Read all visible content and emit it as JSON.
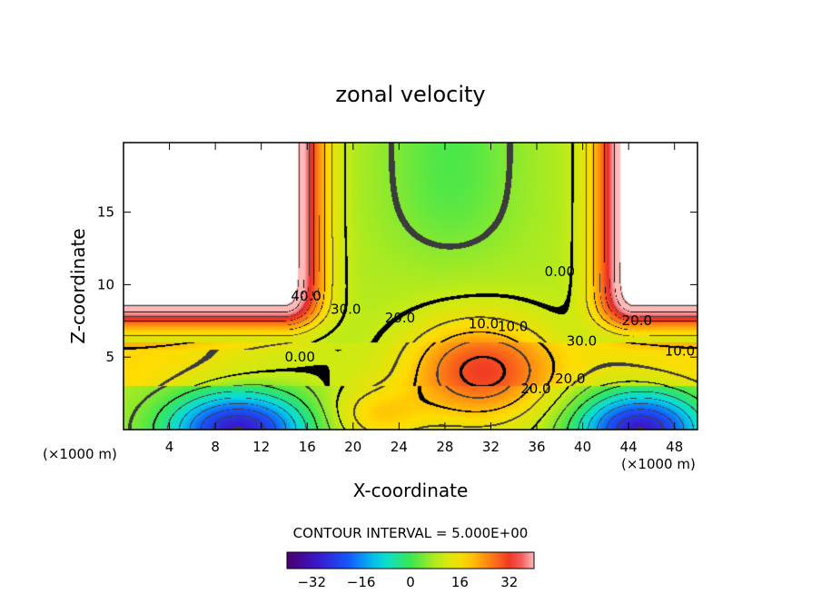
{
  "chart_data": {
    "type": "heatmap",
    "title": "zonal velocity",
    "xlabel": "X-coordinate",
    "ylabel": "Z-coordinate",
    "x_unit_label": "(×1000 m)",
    "y_unit_label": "(×1000 m)",
    "xlim": [
      0,
      50
    ],
    "ylim": [
      0,
      19.8
    ],
    "x_ticks": [
      "4",
      "8",
      "12",
      "16",
      "20",
      "24",
      "28",
      "32",
      "36",
      "40",
      "44",
      "48"
    ],
    "y_ticks": [
      "5",
      "10",
      "15"
    ],
    "contour_interval_text": "CONTOUR INTERVAL = 5.000E+00",
    "contour_labels": [
      "40.0",
      "30.0",
      "20.0",
      "10.0",
      "0.00",
      "10.0",
      "0.00",
      "20.0",
      "30.0",
      "20.0",
      "10.0",
      "20.0"
    ],
    "colorbar": {
      "range": [
        -40,
        40
      ],
      "ticks": [
        "-32",
        "-16",
        "0",
        "16",
        "32"
      ],
      "colormap": "rainbow: purple-blue-cyan-green-yellow-orange-red-pink"
    },
    "field_description": "Strong westerly jets (≈40-45) above z≈8 near both lateral boundaries, easterly flow (≈-35) near the surface at both edges, and weak (-5 to 20) flow in the central region."
  }
}
